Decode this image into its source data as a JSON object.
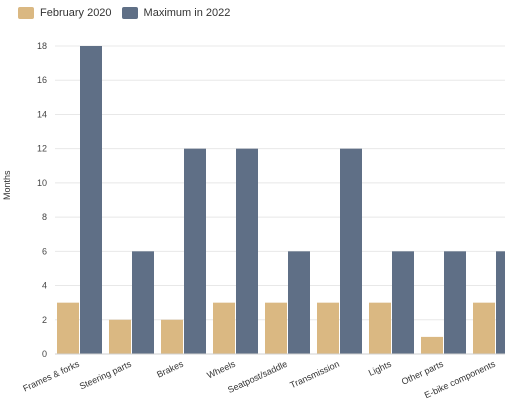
{
  "legend": [
    {
      "label": "February 2020",
      "color": "#dab882"
    },
    {
      "label": "Maximum in 2022",
      "color": "#5f6f86"
    }
  ],
  "chart_data": {
    "type": "bar",
    "categories": [
      "Frames & forks",
      "Steering parts",
      "Brakes",
      "Wheels",
      "Seatpost/saddle",
      "Transmission",
      "Lights",
      "Other parts",
      "E-bike components"
    ],
    "series": [
      {
        "name": "February 2020",
        "values": [
          3,
          2,
          2,
          3,
          3,
          3,
          3,
          1,
          3
        ],
        "color": "#dab882"
      },
      {
        "name": "Maximum in 2022",
        "values": [
          18,
          6,
          12,
          12,
          6,
          12,
          6,
          6,
          6
        ],
        "color": "#5f6f86"
      }
    ],
    "ylabel": "Months",
    "xlabel": "",
    "ylim": [
      0,
      18
    ],
    "yticks": [
      0,
      2,
      4,
      6,
      8,
      10,
      12,
      14,
      16,
      18
    ],
    "grid": true,
    "legend_position": "top-left"
  }
}
